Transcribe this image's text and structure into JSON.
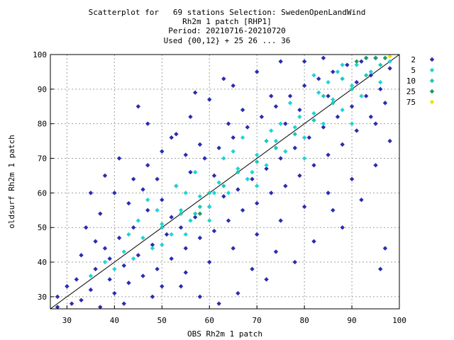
{
  "chart_data": {
    "type": "scatter",
    "title_lines": [
      "Scatterplot for   69 stations Selection: SwedenOpenLandWind",
      "Rh2m 1 patch [RHP1]",
      "Period: 20210716-20210720",
      "Used {00,12} + 25 26 ... 36"
    ],
    "xlabel": "OBS Rh2m 1 patch",
    "ylabel": "oldsurf Rh2m 1 patch",
    "xlim": [
      26.5,
      100
    ],
    "ylim": [
      26.5,
      100
    ],
    "x_ticks": [
      30,
      40,
      50,
      60,
      70,
      80,
      90,
      100
    ],
    "y_ticks": [
      30,
      40,
      50,
      60,
      70,
      80,
      90,
      100
    ],
    "grid": true,
    "diagonal_line": true,
    "legend_position": "right",
    "legend": [
      {
        "label": "2",
        "color": "#2b2bb0"
      },
      {
        "label": "5",
        "color": "#22d3d3"
      },
      {
        "label": "10",
        "color": "#1cc8b0"
      },
      {
        "label": "25",
        "color": "#1a9a60"
      },
      {
        "label": "75",
        "color": "#f0e000"
      }
    ],
    "series": [
      {
        "name": "2",
        "color": "#2b2bb0",
        "points": [
          [
            28,
            30
          ],
          [
            30,
            33
          ],
          [
            31,
            28
          ],
          [
            33,
            29
          ],
          [
            35,
            32
          ],
          [
            36,
            38
          ],
          [
            37,
            27
          ],
          [
            38,
            44
          ],
          [
            39,
            35
          ],
          [
            40,
            31
          ],
          [
            41,
            47
          ],
          [
            42,
            39
          ],
          [
            43,
            34
          ],
          [
            44,
            50
          ],
          [
            45,
            42
          ],
          [
            46,
            36
          ],
          [
            47,
            55
          ],
          [
            48,
            45
          ],
          [
            49,
            38
          ],
          [
            50,
            58
          ],
          [
            51,
            48
          ],
          [
            52,
            41
          ],
          [
            53,
            62
          ],
          [
            54,
            50
          ],
          [
            55,
            44
          ],
          [
            56,
            66
          ],
          [
            57,
            53
          ],
          [
            58,
            47
          ],
          [
            59,
            70
          ],
          [
            60,
            56
          ],
          [
            61,
            49
          ],
          [
            62,
            73
          ],
          [
            63,
            59
          ],
          [
            64,
            52
          ],
          [
            65,
            76
          ],
          [
            66,
            61
          ],
          [
            67,
            55
          ],
          [
            68,
            79
          ],
          [
            69,
            64
          ],
          [
            70,
            57
          ],
          [
            71,
            82
          ],
          [
            72,
            67
          ],
          [
            73,
            60
          ],
          [
            74,
            85
          ],
          [
            75,
            70
          ],
          [
            76,
            62
          ],
          [
            77,
            88
          ],
          [
            78,
            73
          ],
          [
            79,
            65
          ],
          [
            80,
            91
          ],
          [
            81,
            76
          ],
          [
            82,
            68
          ],
          [
            83,
            93
          ],
          [
            84,
            79
          ],
          [
            85,
            71
          ],
          [
            86,
            95
          ],
          [
            87,
            82
          ],
          [
            88,
            74
          ],
          [
            89,
            97
          ],
          [
            90,
            85
          ],
          [
            91,
            78
          ],
          [
            92,
            98
          ],
          [
            93,
            88
          ],
          [
            94,
            82
          ],
          [
            95,
            99
          ],
          [
            96,
            90
          ],
          [
            97,
            86
          ],
          [
            98,
            96
          ],
          [
            34,
            50
          ],
          [
            37,
            54
          ],
          [
            40,
            60
          ],
          [
            44,
            64
          ],
          [
            47,
            68
          ],
          [
            50,
            72
          ],
          [
            53,
            77
          ],
          [
            56,
            82
          ],
          [
            45,
            85
          ],
          [
            60,
            87
          ],
          [
            52,
            76
          ],
          [
            65,
            91
          ],
          [
            70,
            95
          ],
          [
            75,
            98
          ],
          [
            42,
            28
          ],
          [
            50,
            33
          ],
          [
            55,
            37
          ],
          [
            60,
            40
          ],
          [
            65,
            44
          ],
          [
            70,
            48
          ],
          [
            75,
            52
          ],
          [
            80,
            56
          ],
          [
            85,
            60
          ],
          [
            90,
            64
          ],
          [
            95,
            68
          ],
          [
            97,
            44
          ],
          [
            96,
            38
          ],
          [
            88,
            50
          ],
          [
            82,
            46
          ],
          [
            78,
            40
          ],
          [
            72,
            35
          ],
          [
            66,
            31
          ],
          [
            62,
            28
          ],
          [
            58,
            30
          ],
          [
            33,
            42
          ],
          [
            36,
            46
          ],
          [
            39,
            41
          ],
          [
            43,
            57
          ],
          [
            46,
            61
          ],
          [
            49,
            64
          ],
          [
            52,
            53
          ],
          [
            55,
            71
          ],
          [
            58,
            74
          ],
          [
            61,
            65
          ],
          [
            64,
            80
          ],
          [
            67,
            84
          ],
          [
            73,
            88
          ],
          [
            76,
            80
          ],
          [
            79,
            84
          ],
          [
            85,
            88
          ],
          [
            91,
            92
          ],
          [
            94,
            94
          ],
          [
            28,
            27
          ],
          [
            32,
            35
          ],
          [
            48,
            30
          ],
          [
            54,
            33
          ],
          [
            69,
            38
          ],
          [
            74,
            43
          ],
          [
            86,
            55
          ],
          [
            92,
            58
          ],
          [
            95,
            80
          ],
          [
            98,
            75
          ],
          [
            80,
            98
          ],
          [
            84,
            99
          ],
          [
            63,
            93
          ],
          [
            57,
            89
          ],
          [
            47,
            80
          ],
          [
            41,
            70
          ],
          [
            38,
            65
          ],
          [
            35,
            60
          ]
        ]
      },
      {
        "name": "5",
        "color": "#22d3d3",
        "points": [
          [
            35,
            36
          ],
          [
            38,
            40
          ],
          [
            40,
            38
          ],
          [
            42,
            43
          ],
          [
            44,
            41
          ],
          [
            46,
            47
          ],
          [
            48,
            44
          ],
          [
            50,
            51
          ],
          [
            52,
            48
          ],
          [
            54,
            55
          ],
          [
            56,
            52
          ],
          [
            58,
            59
          ],
          [
            60,
            56
          ],
          [
            62,
            63
          ],
          [
            64,
            60
          ],
          [
            66,
            67
          ],
          [
            68,
            64
          ],
          [
            70,
            71
          ],
          [
            72,
            68
          ],
          [
            74,
            75
          ],
          [
            76,
            72
          ],
          [
            78,
            79
          ],
          [
            80,
            76
          ],
          [
            82,
            83
          ],
          [
            84,
            80
          ],
          [
            86,
            87
          ],
          [
            88,
            84
          ],
          [
            90,
            91
          ],
          [
            92,
            88
          ],
          [
            94,
            95
          ],
          [
            96,
            92
          ],
          [
            98,
            98
          ],
          [
            45,
            52
          ],
          [
            50,
            45
          ],
          [
            55,
            60
          ],
          [
            60,
            52
          ],
          [
            65,
            72
          ],
          [
            70,
            62
          ],
          [
            75,
            80
          ],
          [
            80,
            70
          ],
          [
            85,
            92
          ],
          [
            90,
            80
          ],
          [
            93,
            99
          ],
          [
            88,
            97
          ],
          [
            82,
            94
          ],
          [
            47,
            58
          ],
          [
            53,
            62
          ],
          [
            57,
            66
          ],
          [
            63,
            70
          ],
          [
            67,
            76
          ],
          [
            73,
            78
          ],
          [
            77,
            86
          ],
          [
            83,
            89
          ],
          [
            87,
            95
          ],
          [
            91,
            97
          ],
          [
            95,
            99
          ],
          [
            43,
            48
          ],
          [
            49,
            55
          ],
          [
            55,
            48
          ],
          [
            61,
            60
          ],
          [
            69,
            66
          ],
          [
            79,
            82
          ]
        ]
      },
      {
        "name": "10",
        "color": "#1cc8b0",
        "points": [
          [
            50,
            50
          ],
          [
            54,
            54
          ],
          [
            58,
            56
          ],
          [
            60,
            60
          ],
          [
            63,
            62
          ],
          [
            66,
            66
          ],
          [
            70,
            69
          ],
          [
            74,
            73
          ],
          [
            78,
            77
          ],
          [
            82,
            81
          ],
          [
            86,
            86
          ],
          [
            90,
            90
          ],
          [
            93,
            94
          ],
          [
            96,
            97
          ],
          [
            57,
            54
          ],
          [
            72,
            75
          ],
          [
            84,
            88
          ],
          [
            88,
            93
          ]
        ]
      },
      {
        "name": "25",
        "color": "#1a9a60",
        "points": [
          [
            58,
            54
          ],
          [
            91,
            98
          ],
          [
            93,
            99
          ],
          [
            95,
            99
          ],
          [
            97,
            99
          ]
        ]
      },
      {
        "name": "75",
        "color": "#f0e000",
        "points": [
          [
            98,
            99.5
          ]
        ]
      }
    ]
  }
}
